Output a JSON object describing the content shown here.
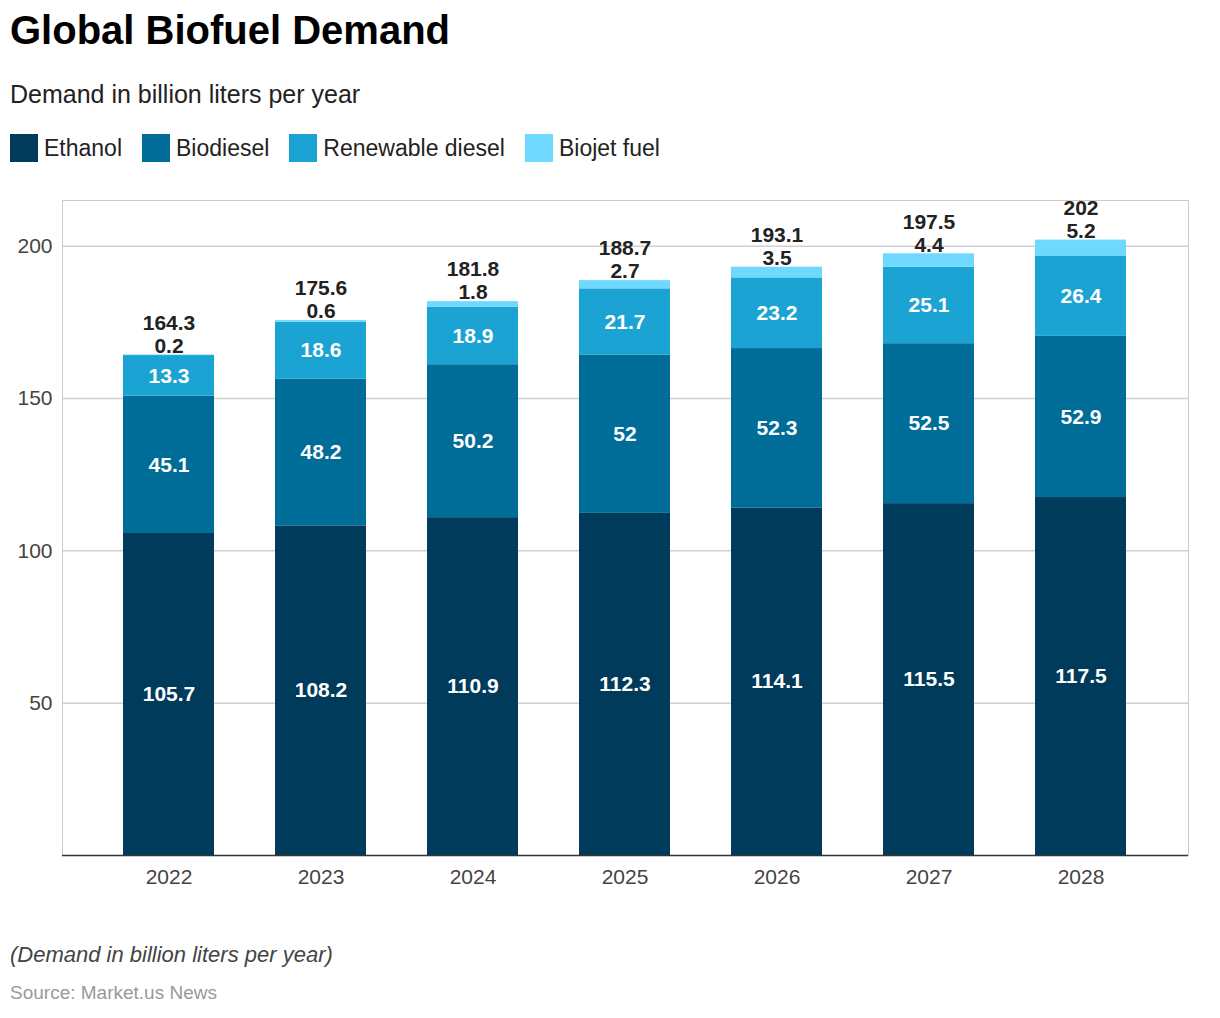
{
  "chart_data": {
    "type": "bar",
    "title": "Global Biofuel Demand",
    "subtitle": "Demand in billion liters per year",
    "caption": "(Demand in billion liters per year)",
    "source": "Source: Market.us News",
    "categories": [
      "2022",
      "2023",
      "2024",
      "2025",
      "2026",
      "2027",
      "2028"
    ],
    "series": [
      {
        "name": "Ethanol",
        "color": "#003b5c",
        "values": [
          105.7,
          108.2,
          110.9,
          112.3,
          114.1,
          115.5,
          117.5
        ]
      },
      {
        "name": "Biodiesel",
        "color": "#006c98",
        "values": [
          45.1,
          48.2,
          50.2,
          52,
          52.3,
          52.5,
          52.9
        ]
      },
      {
        "name": "Renewable diesel",
        "color": "#1ba3d4",
        "values": [
          13.3,
          18.6,
          18.9,
          21.7,
          23.2,
          25.1,
          26.4
        ]
      },
      {
        "name": "Biojet fuel",
        "color": "#6fd8ff",
        "values": [
          0.2,
          0.6,
          1.8,
          2.7,
          3.5,
          4.4,
          5.2
        ]
      }
    ],
    "totals": [
      164.3,
      175.6,
      181.8,
      188.7,
      193.1,
      197.5,
      202
    ],
    "ylim": [
      0,
      215
    ],
    "yticks": [
      50,
      100,
      150,
      200
    ],
    "stacked": true,
    "data_labels": true,
    "grid": true,
    "legend": "top-left"
  }
}
